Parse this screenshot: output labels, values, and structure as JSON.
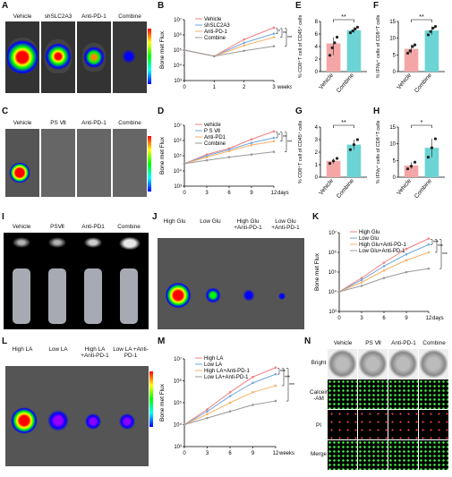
{
  "panels": {
    "A": {
      "letter": "A",
      "labels": [
        "Vehicle",
        "shSLC2A3",
        "Anti-PD-1",
        "Combine"
      ],
      "colorbar": "Luminescence",
      "cb_max": "10⁷",
      "cb_min": "10⁴"
    },
    "B": {
      "letter": "B"
    },
    "C": {
      "letter": "C",
      "labels": [
        "Vehicle",
        "PS Ⅶ",
        "Anti-PD-1",
        "Combine"
      ],
      "colorbar": "Luminescence",
      "cb_max": "10⁷",
      "cb_min": "10⁴"
    },
    "D": {
      "letter": "D"
    },
    "E": {
      "letter": "E"
    },
    "F": {
      "letter": "F"
    },
    "G": {
      "letter": "G"
    },
    "H": {
      "letter": "H"
    },
    "I": {
      "letter": "I",
      "labels": [
        "Vehicle",
        "PSⅦ",
        "Anti-PD1",
        "Combine"
      ]
    },
    "J": {
      "letter": "J",
      "labels": [
        "High Glu",
        "Low Glu",
        "High Glu +Anti-PD-1",
        "Low Glu +Anti-PD-1"
      ],
      "colorbar": "Luminescence",
      "cb_max": "10⁷",
      "cb_min": "10⁴"
    },
    "K": {
      "letter": "K"
    },
    "L": {
      "letter": "L",
      "labels": [
        "High LA",
        "Low LA",
        "High LA +Anti-PD-1",
        "Low LA +Anti-PD-1"
      ],
      "colorbar": "Luminescence",
      "cb_max": "10⁷",
      "cb_min": "10⁴"
    },
    "M": {
      "letter": "M"
    },
    "N": {
      "letter": "N",
      "cols": [
        "Vehicle",
        "PS Ⅶ",
        "Anti-PD-1",
        "Combine"
      ],
      "rows": [
        "Bright",
        "Calcein -AM",
        "PI",
        "Merge"
      ]
    }
  },
  "chart_data": [
    {
      "id": "B",
      "type": "line",
      "ylabel": "Bone met Flux",
      "xlabel": "weeks",
      "x": [
        0,
        1,
        2,
        3
      ],
      "yscale": "log",
      "ylim_exp": [
        3,
        7
      ],
      "yticks": [
        "10³",
        "10⁴",
        "10⁵",
        "10⁶",
        "10⁷"
      ],
      "series": [
        {
          "name": "Vehicle",
          "color": "#f08080",
          "values": [
            100000.0,
            40000.0,
            500000.0,
            3000000.0
          ]
        },
        {
          "name": "shSLC2A3",
          "color": "#6fa8dc",
          "values": [
            100000.0,
            40000.0,
            300000.0,
            1200000.0
          ]
        },
        {
          "name": "Anti-PD-1",
          "color": "#f6b26b",
          "values": [
            100000.0,
            40000.0,
            200000.0,
            700000.0
          ]
        },
        {
          "name": "Combine",
          "color": "#999999",
          "values": [
            100000.0,
            40000.0,
            90000.0,
            180000.0
          ]
        }
      ],
      "sig": [
        "*",
        "**",
        "***"
      ]
    },
    {
      "id": "D",
      "type": "line",
      "ylabel": "Bone met Flux",
      "xlabel": "days",
      "x": [
        0,
        3,
        6,
        9,
        12
      ],
      "yscale": "log",
      "ylim_exp": [
        3,
        7
      ],
      "yticks": [
        "10³",
        "10⁴",
        "10⁵",
        "10⁶",
        "10⁷"
      ],
      "series": [
        {
          "name": "vehicle",
          "color": "#f08080",
          "values": [
            30000.0,
            120000.0,
            300000.0,
            1200000.0,
            4000000.0
          ]
        },
        {
          "name": "P S Ⅶ",
          "color": "#6fa8dc",
          "values": [
            30000.0,
            100000.0,
            250000.0,
            700000.0,
            1500000.0
          ]
        },
        {
          "name": "Anti-PD1",
          "color": "#f6b26b",
          "values": [
            30000.0,
            80000.0,
            200000.0,
            500000.0,
            900000.0
          ]
        },
        {
          "name": "Combine",
          "color": "#999999",
          "values": [
            30000.0,
            50000.0,
            80000.0,
            120000.0,
            180000.0
          ]
        }
      ],
      "sig": [
        "*",
        "**",
        "***"
      ]
    },
    {
      "id": "E",
      "type": "bar",
      "ylabel": "% CD8⁺T cell of CD45⁺ cells",
      "categories": [
        "Vehicle",
        "Combine"
      ],
      "values": [
        4.5,
        6.6
      ],
      "ylim": [
        0,
        8
      ],
      "yticks": [
        "0",
        "2",
        "4",
        "6",
        "8"
      ],
      "colors": [
        "#f4a6a6",
        "#6cd4d4"
      ],
      "points": [
        [
          2.6,
          3.8,
          4.6,
          5.5
        ],
        [
          6.2,
          6.5,
          6.8,
          7.1
        ]
      ],
      "sig": "**"
    },
    {
      "id": "F",
      "type": "bar",
      "ylabel": "% IFNγ⁺ cells of CD8⁺T cells",
      "categories": [
        "Vehicle",
        "Combine"
      ],
      "values": [
        6.8,
        12.3
      ],
      "ylim": [
        0,
        15
      ],
      "yticks": [
        "0",
        "5",
        "10",
        "15"
      ],
      "colors": [
        "#f4a6a6",
        "#6cd4d4"
      ],
      "points": [
        [
          5.5,
          6.2,
          7.5,
          8
        ],
        [
          11,
          12,
          13,
          13.5
        ]
      ],
      "sig": "**"
    },
    {
      "id": "G",
      "type": "bar",
      "ylabel": "% CD8⁺T cell of CD45⁺ cells",
      "categories": [
        "Vehicle",
        "Combine"
      ],
      "values": [
        1.3,
        2.6
      ],
      "ylim": [
        0,
        4
      ],
      "yticks": [
        "0",
        "1",
        "2",
        "3",
        "4"
      ],
      "colors": [
        "#f4a6a6",
        "#6cd4d4"
      ],
      "points": [
        [
          1.1,
          1.3,
          1.5
        ],
        [
          2.2,
          2.6,
          3.0
        ]
      ],
      "sig": "**"
    },
    {
      "id": "H",
      "type": "bar",
      "ylabel": "% IFNγ⁺ cells of CD8⁺T cells",
      "categories": [
        "Vehicle",
        "Combine"
      ],
      "values": [
        3.5,
        8.8
      ],
      "ylim": [
        0,
        15
      ],
      "yticks": [
        "0",
        "5",
        "10",
        "15"
      ],
      "colors": [
        "#f4a6a6",
        "#6cd4d4"
      ],
      "points": [
        [
          2.5,
          3.3,
          4.5
        ],
        [
          6,
          8.8,
          11.5
        ]
      ],
      "sig": "*"
    },
    {
      "id": "K",
      "type": "line",
      "ylabel": "Bone met Flux",
      "xlabel": "days",
      "x": [
        0,
        3,
        6,
        9,
        12
      ],
      "yscale": "log",
      "ylim_exp": [
        3,
        7
      ],
      "yticks": [
        "10³",
        "10⁴",
        "10⁵",
        "10⁶",
        "10⁷"
      ],
      "series": [
        {
          "name": "High Glu",
          "color": "#f08080",
          "values": [
            10000.0,
            50000.0,
            300000.0,
            1500000.0,
            5000000.0
          ]
        },
        {
          "name": "Low  Glu",
          "color": "#6fa8dc",
          "values": [
            10000.0,
            40000.0,
            200000.0,
            800000.0,
            2500000.0
          ]
        },
        {
          "name": "High Glu+Anti-PD-1",
          "color": "#f6b26b",
          "values": [
            10000.0,
            30000.0,
            120000.0,
            400000.0,
            1000000.0
          ]
        },
        {
          "name": "Low  Glu+Anti-PD-1",
          "color": "#999999",
          "values": [
            10000.0,
            20000.0,
            50000.0,
            100000.0,
            150000.0
          ]
        }
      ],
      "sig": [
        "***",
        "***",
        "***"
      ]
    },
    {
      "id": "M",
      "type": "line",
      "ylabel": "Bone met Flux",
      "xlabel": "weeks",
      "x": [
        0,
        3,
        6,
        9,
        12
      ],
      "yscale": "log",
      "ylim_exp": [
        3,
        7
      ],
      "yticks": [
        "10³",
        "10⁴",
        "10⁵",
        "10⁶",
        "10⁷"
      ],
      "series": [
        {
          "name": "High LA",
          "color": "#f08080",
          "values": [
            10000.0,
            50000.0,
            300000.0,
            1500000.0,
            4000000.0
          ]
        },
        {
          "name": "Low  LA",
          "color": "#6fa8dc",
          "values": [
            10000.0,
            40000.0,
            200000.0,
            800000.0,
            2000000.0
          ]
        },
        {
          "name": "High LA+Anti-PD-1",
          "color": "#f6b26b",
          "values": [
            10000.0,
            30000.0,
            100000.0,
            300000.0,
            600000.0
          ]
        },
        {
          "name": "Low  LA+Anti-PD-1",
          "color": "#999999",
          "values": [
            10000.0,
            20000.0,
            40000.0,
            80000.0,
            120000.0
          ]
        }
      ],
      "sig": [
        "***",
        "***",
        "***"
      ]
    }
  ]
}
